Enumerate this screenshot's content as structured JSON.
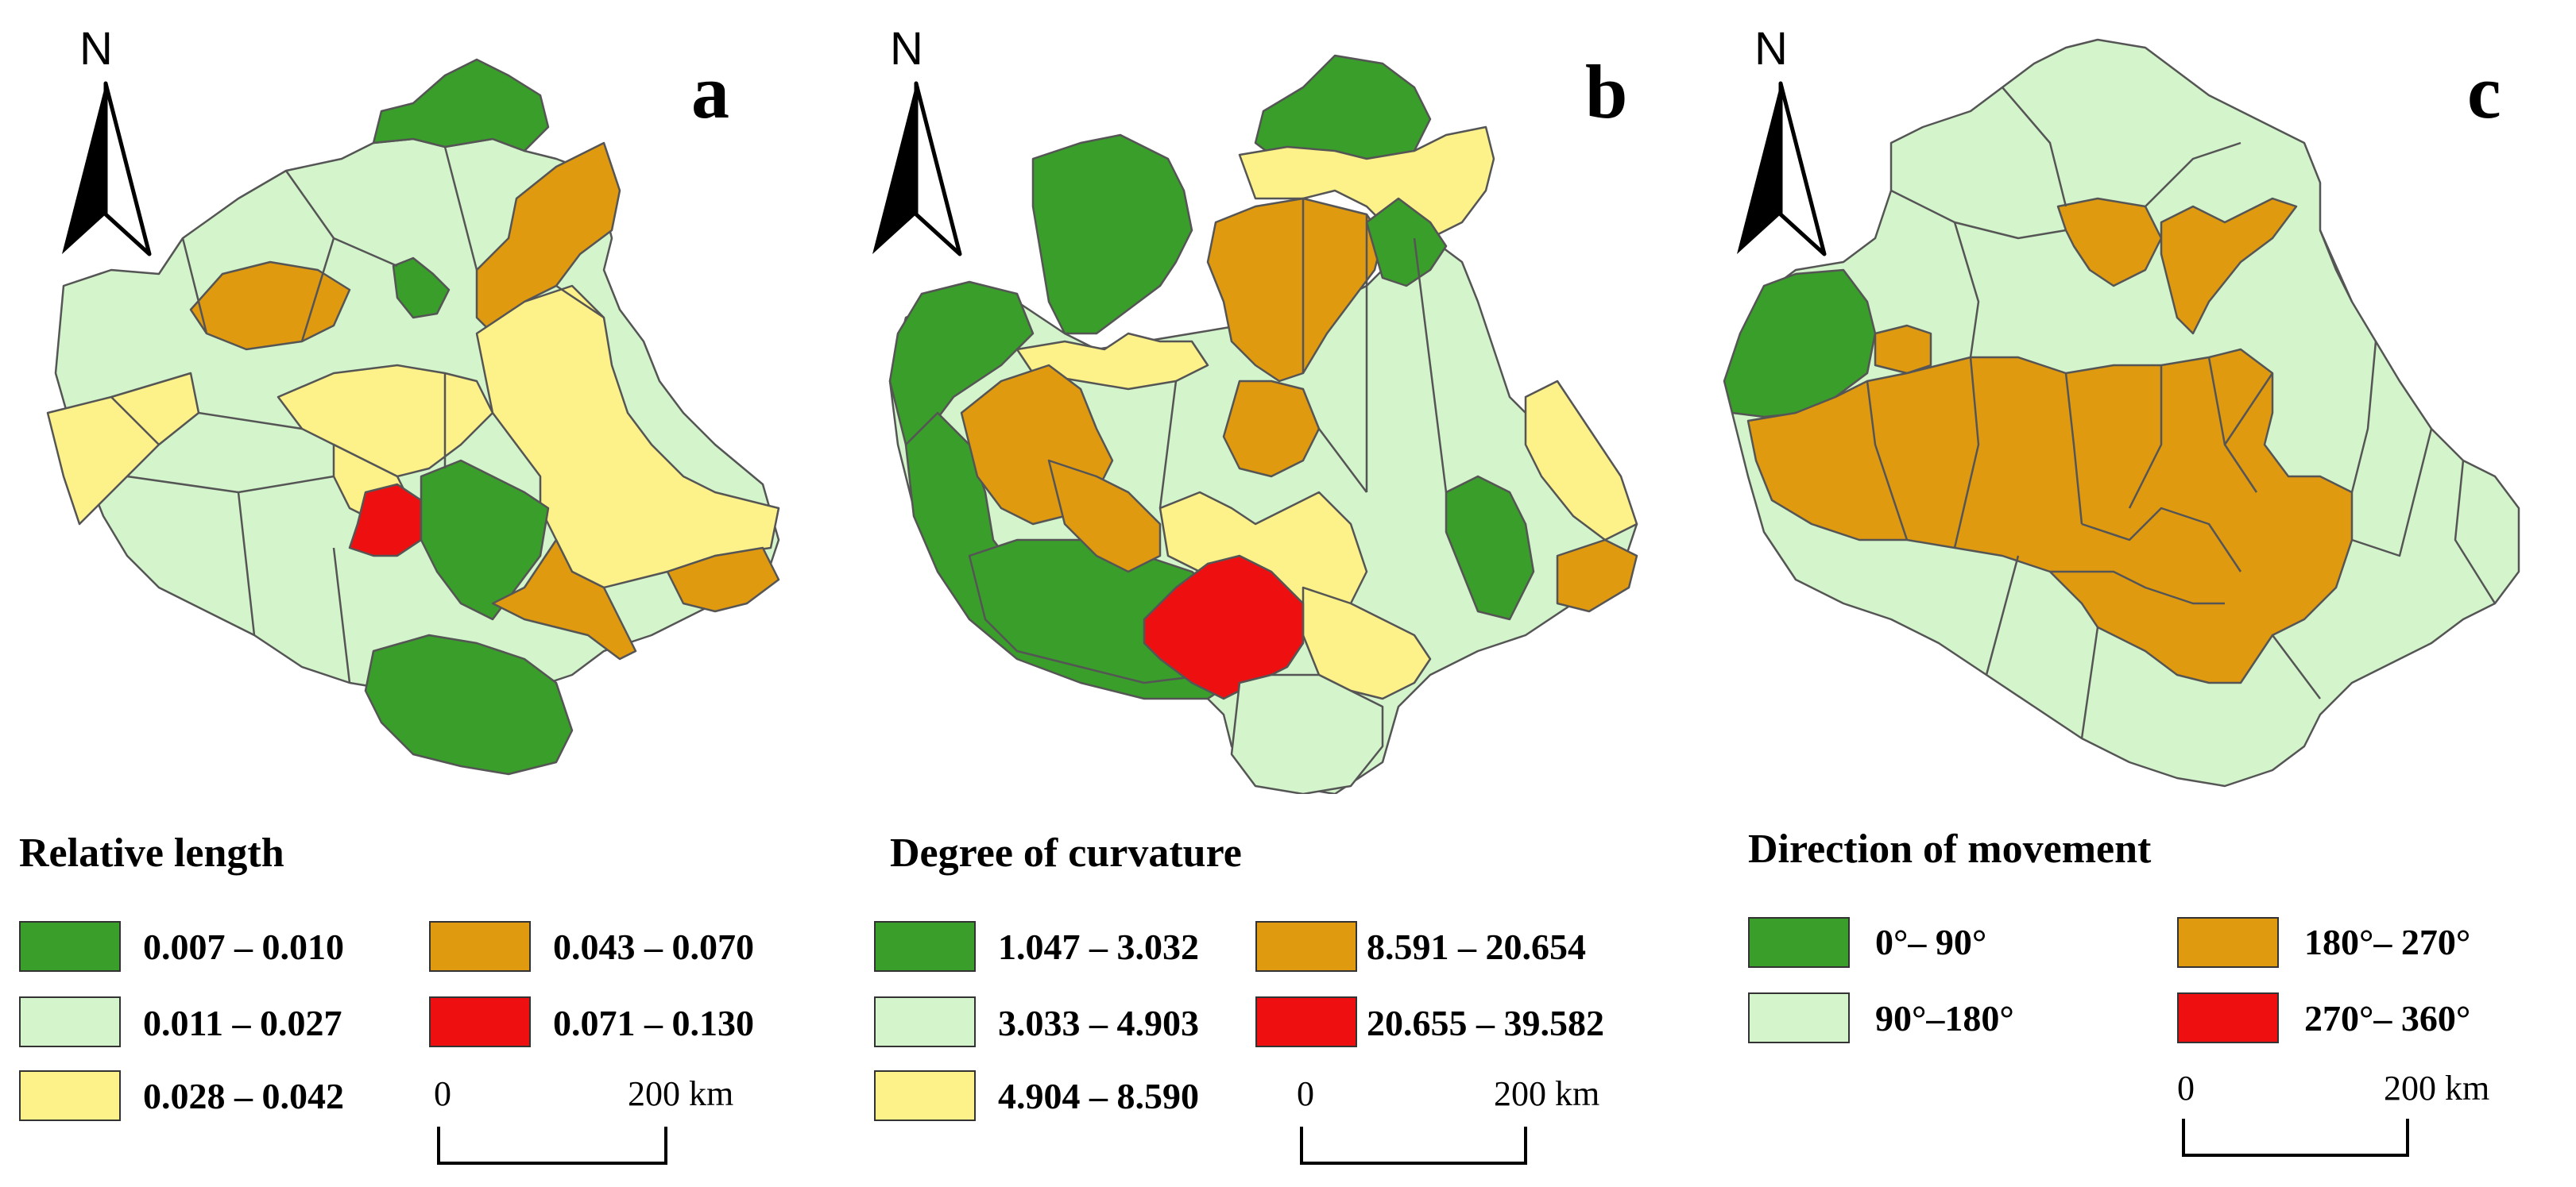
{
  "north_label": "N",
  "colors": {
    "dark_green": "#3a9e2a",
    "light_green": "#d4f5cc",
    "yellow": "#fdf28a",
    "orange": "#e09a10",
    "red": "#ee1010",
    "border": "#555555"
  },
  "panels": [
    {
      "letter": "a",
      "legend_title": "Relative length",
      "classes": [
        {
          "label": "0.007 – 0.010",
          "color": "#3a9e2a"
        },
        {
          "label": "0.011 – 0.027",
          "color": "#d4f5cc"
        },
        {
          "label": "0.028 – 0.042",
          "color": "#fdf28a"
        },
        {
          "label": "0.043 – 0.070",
          "color": "#e09a10"
        },
        {
          "label": "0.071 – 0.130",
          "color": "#ee1010"
        }
      ],
      "scale": {
        "start": "0",
        "end": "200 km"
      }
    },
    {
      "letter": "b",
      "legend_title": "Degree of curvature",
      "classes": [
        {
          "label": "1.047 – 3.032",
          "color": "#3a9e2a"
        },
        {
          "label": "3.033 – 4.903",
          "color": "#d4f5cc"
        },
        {
          "label": "4.904 – 8.590",
          "color": "#fdf28a"
        },
        {
          "label": "8.591 – 20.654",
          "color": "#e09a10"
        },
        {
          "label": "20.655 – 39.582",
          "color": "#ee1010"
        }
      ],
      "scale": {
        "start": "0",
        "end": "200 km"
      }
    },
    {
      "letter": "c",
      "legend_title": "Direction of movement",
      "classes": [
        {
          "label": "0°– 90°",
          "color": "#3a9e2a"
        },
        {
          "label": "90°–180°",
          "color": "#d4f5cc"
        },
        {
          "label": "180°– 270°",
          "color": "#e09a10"
        },
        {
          "label": "270°– 360°",
          "color": "#ee1010"
        }
      ],
      "scale": {
        "start": "0",
        "end": "200 km"
      }
    }
  ]
}
